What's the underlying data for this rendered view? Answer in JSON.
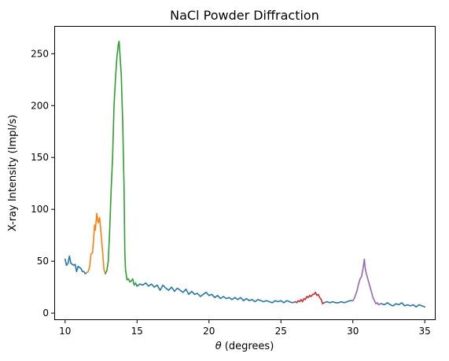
{
  "chart_data": {
    "type": "line",
    "title": "NaCl Powder Diffraction",
    "xlabel_symbol": "θ",
    "xlabel_text": " (degrees)",
    "ylabel": "X-ray Intensity (Impl/s)",
    "xlim": [
      9.3,
      35.7
    ],
    "ylim": [
      -6,
      276
    ],
    "xticks": [
      10,
      15,
      20,
      25,
      30,
      35
    ],
    "yticks": [
      0,
      50,
      100,
      150,
      200,
      250
    ],
    "grid": false,
    "legend": "none",
    "series": [
      {
        "color": "#1f77b4",
        "points": [
          [
            10.0,
            52
          ],
          [
            10.1,
            46
          ],
          [
            10.2,
            48
          ],
          [
            10.3,
            55
          ],
          [
            10.4,
            48
          ],
          [
            10.5,
            47
          ],
          [
            10.6,
            46
          ],
          [
            10.7,
            47
          ],
          [
            10.8,
            40
          ],
          [
            10.9,
            45
          ],
          [
            11.0,
            44
          ],
          [
            11.1,
            43
          ],
          [
            11.2,
            40
          ],
          [
            11.3,
            40
          ],
          [
            11.4,
            38
          ],
          [
            11.5,
            39
          ]
        ]
      },
      {
        "color": "#ff7f0e",
        "points": [
          [
            11.5,
            39
          ],
          [
            11.6,
            40
          ],
          [
            11.7,
            44
          ],
          [
            11.8,
            57
          ],
          [
            11.9,
            58
          ],
          [
            12.0,
            75
          ],
          [
            12.05,
            85
          ],
          [
            12.1,
            80
          ],
          [
            12.2,
            96
          ],
          [
            12.3,
            87
          ],
          [
            12.4,
            92
          ],
          [
            12.5,
            77
          ],
          [
            12.6,
            60
          ],
          [
            12.7,
            42
          ],
          [
            12.8,
            38
          ]
        ]
      },
      {
        "color": "#2ca02c",
        "points": [
          [
            12.8,
            38
          ],
          [
            12.9,
            41
          ],
          [
            13.0,
            50
          ],
          [
            13.1,
            80
          ],
          [
            13.2,
            120
          ],
          [
            13.3,
            150
          ],
          [
            13.4,
            200
          ],
          [
            13.5,
            225
          ],
          [
            13.6,
            247
          ],
          [
            13.7,
            259
          ],
          [
            13.75,
            262
          ],
          [
            13.8,
            252
          ],
          [
            13.9,
            230
          ],
          [
            14.0,
            185
          ],
          [
            14.1,
            120
          ],
          [
            14.15,
            60
          ],
          [
            14.2,
            42
          ],
          [
            14.3,
            32
          ],
          [
            14.4,
            33
          ],
          [
            14.5,
            30
          ],
          [
            14.6,
            31
          ],
          [
            14.7,
            33
          ],
          [
            14.8,
            27
          ],
          [
            14.9,
            29
          ],
          [
            15.0,
            26
          ]
        ]
      },
      {
        "color": "#1f77b4",
        "points": [
          [
            15.0,
            26
          ],
          [
            15.2,
            28
          ],
          [
            15.4,
            27
          ],
          [
            15.6,
            29
          ],
          [
            15.8,
            26
          ],
          [
            16.0,
            28
          ],
          [
            16.2,
            25
          ],
          [
            16.4,
            27
          ],
          [
            16.6,
            22
          ],
          [
            16.8,
            27
          ],
          [
            17.0,
            24
          ],
          [
            17.2,
            22
          ],
          [
            17.4,
            25
          ],
          [
            17.6,
            21
          ],
          [
            17.8,
            24
          ],
          [
            18.0,
            22
          ],
          [
            18.2,
            20
          ],
          [
            18.4,
            23
          ],
          [
            18.6,
            18
          ],
          [
            18.8,
            21
          ],
          [
            19.0,
            18
          ],
          [
            19.2,
            19
          ],
          [
            19.4,
            16
          ],
          [
            19.6,
            18
          ],
          [
            19.8,
            20
          ],
          [
            20.0,
            17
          ],
          [
            20.2,
            18
          ],
          [
            20.4,
            15
          ],
          [
            20.6,
            17
          ],
          [
            20.8,
            14
          ],
          [
            21.0,
            16
          ],
          [
            21.2,
            14
          ],
          [
            21.4,
            15
          ],
          [
            21.6,
            13
          ],
          [
            21.8,
            15
          ],
          [
            22.0,
            13
          ],
          [
            22.2,
            15
          ],
          [
            22.4,
            12
          ],
          [
            22.6,
            14
          ],
          [
            22.8,
            12
          ],
          [
            23.0,
            13
          ],
          [
            23.2,
            11
          ],
          [
            23.4,
            13
          ],
          [
            23.6,
            12
          ],
          [
            23.8,
            11
          ],
          [
            24.0,
            12
          ],
          [
            24.2,
            11
          ],
          [
            24.4,
            10
          ],
          [
            24.6,
            12
          ],
          [
            24.8,
            11
          ],
          [
            25.0,
            12
          ],
          [
            25.2,
            10
          ],
          [
            25.4,
            12
          ],
          [
            25.6,
            11
          ],
          [
            25.8,
            10
          ],
          [
            26.0,
            11
          ]
        ]
      },
      {
        "color": "#d62728",
        "points": [
          [
            26.0,
            11
          ],
          [
            26.1,
            10
          ],
          [
            26.2,
            12
          ],
          [
            26.3,
            11
          ],
          [
            26.4,
            13
          ],
          [
            26.5,
            11
          ],
          [
            26.6,
            14
          ],
          [
            26.7,
            13
          ],
          [
            26.8,
            16
          ],
          [
            26.9,
            15
          ],
          [
            27.0,
            17
          ],
          [
            27.1,
            16
          ],
          [
            27.2,
            18
          ],
          [
            27.3,
            18
          ],
          [
            27.4,
            20
          ],
          [
            27.5,
            17
          ],
          [
            27.6,
            18
          ],
          [
            27.7,
            15
          ],
          [
            27.8,
            13
          ],
          [
            27.9,
            9
          ],
          [
            28.0,
            10
          ]
        ]
      },
      {
        "color": "#1f77b4",
        "points": [
          [
            28.0,
            10
          ],
          [
            28.2,
            11
          ],
          [
            28.4,
            10
          ],
          [
            28.6,
            11
          ],
          [
            28.8,
            10
          ],
          [
            29.0,
            10
          ],
          [
            29.2,
            11
          ],
          [
            29.4,
            10
          ],
          [
            29.6,
            11
          ],
          [
            29.8,
            12
          ],
          [
            30.0,
            12
          ]
        ]
      },
      {
        "color": "#9467bd",
        "points": [
          [
            30.0,
            12
          ],
          [
            30.1,
            14
          ],
          [
            30.2,
            18
          ],
          [
            30.3,
            22
          ],
          [
            30.4,
            28
          ],
          [
            30.5,
            33
          ],
          [
            30.6,
            35
          ],
          [
            30.7,
            42
          ],
          [
            30.75,
            47
          ],
          [
            30.8,
            52
          ],
          [
            30.85,
            44
          ],
          [
            30.9,
            40
          ],
          [
            31.0,
            35
          ],
          [
            31.1,
            30
          ],
          [
            31.2,
            25
          ],
          [
            31.3,
            20
          ],
          [
            31.4,
            15
          ],
          [
            31.5,
            12
          ],
          [
            31.6,
            9
          ],
          [
            31.7,
            10
          ],
          [
            31.8,
            8
          ],
          [
            31.9,
            9
          ],
          [
            32.0,
            9
          ]
        ]
      },
      {
        "color": "#1f77b4",
        "points": [
          [
            32.0,
            9
          ],
          [
            32.2,
            8
          ],
          [
            32.4,
            10
          ],
          [
            32.6,
            8
          ],
          [
            32.8,
            7
          ],
          [
            33.0,
            9
          ],
          [
            33.2,
            8
          ],
          [
            33.4,
            10
          ],
          [
            33.6,
            7
          ],
          [
            33.8,
            8
          ],
          [
            34.0,
            7
          ],
          [
            34.2,
            8
          ],
          [
            34.4,
            6
          ],
          [
            34.6,
            8
          ],
          [
            34.8,
            7
          ],
          [
            35.0,
            6
          ]
        ]
      }
    ]
  }
}
